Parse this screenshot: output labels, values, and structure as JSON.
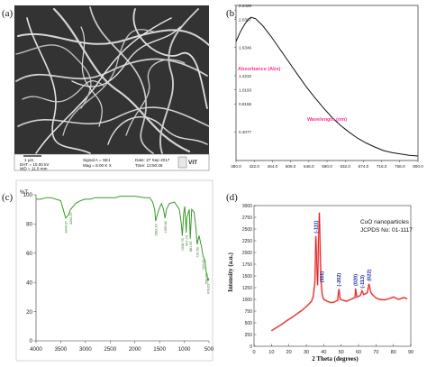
{
  "panels": {
    "a": {
      "label": "(a)"
    },
    "b": {
      "label": "(b)"
    },
    "c": {
      "label": "(c)"
    },
    "d": {
      "label": "(d)"
    }
  },
  "sem_info": {
    "left": [
      "EHT = 10.00 kV",
      "WD = 11.0 mm"
    ],
    "middle": [
      "Signal A = SE1",
      "Mag = 8.00 K X"
    ],
    "right": [
      "Date: 27 Sep 2017",
      "Time: 13:50:28"
    ],
    "scale": "1 µm",
    "logo": "VIT"
  },
  "colors": {
    "ir_line": "#3a9a2a",
    "ir_label": "#2f7a2a",
    "xrd_line": "#e0201c",
    "uv_line": "#111111",
    "uv_axis_label": "#ff3399",
    "xrd_peak_label": "#1a2f9a"
  },
  "chart_data": [
    {
      "panel": "b",
      "type": "line",
      "title": "",
      "xlabel": "Wavelength (nm)",
      "ylabel": "Absorbance (Abs)",
      "xlim": [
        380.0,
        800.0
      ],
      "ylim": [
        -0.0055,
        2.2426
      ],
      "xticks": [
        380.0,
        422.0,
        464.0,
        506.0,
        548.0,
        590.0,
        632.0,
        674.0,
        716.0,
        758.0,
        800.0
      ],
      "xtick_labels": [
        "380.0",
        "422.0",
        "464.0",
        "506.0",
        "548.0",
        "590.0",
        "632.0",
        "674.0",
        "716.0",
        "758.0",
        "800.0"
      ],
      "yticks": [
        0.4077,
        0.8155,
        1.0193,
        1.2232,
        1.6346,
        2.0387,
        2.2426
      ],
      "ytick_labels": [
        "0.4077",
        "0.8155",
        "1.0193",
        "1.2232",
        "1.6346",
        "2.0387",
        "2.2426"
      ],
      "x": [
        380,
        390,
        400,
        410,
        415,
        420,
        425,
        430,
        440,
        450,
        460,
        480,
        500,
        520,
        540,
        560,
        580,
        600,
        620,
        640,
        660,
        680,
        700,
        720,
        740,
        760,
        780,
        800
      ],
      "y": [
        1.72,
        1.86,
        1.97,
        2.05,
        2.07,
        2.06,
        2.05,
        2.02,
        1.96,
        1.88,
        1.8,
        1.62,
        1.44,
        1.26,
        1.08,
        0.92,
        0.77,
        0.63,
        0.51,
        0.41,
        0.32,
        0.25,
        0.19,
        0.14,
        0.11,
        0.09,
        0.07,
        0.06
      ]
    },
    {
      "panel": "c",
      "type": "line",
      "title": "",
      "ylabel": "%T",
      "xlim": [
        4000,
        500
      ],
      "ylim": [
        0,
        100
      ],
      "xticks": [
        4000,
        3500,
        3000,
        2500,
        2000,
        1500,
        1000,
        500
      ],
      "xtick_labels": [
        "4000",
        "3500",
        "3000",
        "2500",
        "2000",
        "1500",
        "1000",
        "500"
      ],
      "yticks": [
        0,
        20,
        40,
        60,
        80,
        100
      ],
      "ytick_labels": [
        "0",
        "20",
        "40",
        "60",
        "80",
        "100"
      ],
      "x": [
        4000,
        3900,
        3800,
        3700,
        3600,
        3500,
        3450,
        3400,
        3350,
        3300,
        3200,
        3100,
        3000,
        2900,
        2800,
        2600,
        2400,
        2300,
        2200,
        2000,
        1800,
        1700,
        1640,
        1600,
        1580,
        1540,
        1500,
        1460,
        1420,
        1390,
        1360,
        1300,
        1200,
        1100,
        1060,
        1040,
        1010,
        990,
        960,
        950,
        900,
        880,
        860,
        850,
        800,
        760,
        740,
        700,
        650,
        620,
        580,
        560,
        540,
        520,
        500
      ],
      "y": [
        97,
        97,
        98,
        98,
        97,
        96,
        90,
        84,
        86,
        90,
        94,
        96,
        97,
        97,
        98,
        98,
        98,
        99,
        99,
        99,
        98,
        98,
        95,
        90,
        82,
        87,
        91,
        94,
        90,
        84,
        90,
        94,
        95,
        90,
        80,
        72,
        88,
        92,
        74,
        84,
        90,
        70,
        84,
        90,
        88,
        76,
        66,
        72,
        64,
        58,
        55,
        48,
        45,
        41,
        43
      ],
      "peak_labels": [
        {
          "x": 3400,
          "text": "3340.97"
        },
        {
          "x": 3300,
          "text": "3262.57"
        },
        {
          "x": 1580,
          "text": "1582.40"
        },
        {
          "x": 1390,
          "text": "1390.82"
        },
        {
          "x": 1040,
          "text": "1038.76"
        },
        {
          "x": 960,
          "text": "957.70"
        },
        {
          "x": 880,
          "text": "881.93"
        },
        {
          "x": 740,
          "text": "734.59"
        },
        {
          "x": 620,
          "text": "624.81"
        },
        {
          "x": 560,
          "text": "559.60"
        },
        {
          "x": 520,
          "text": "478.63"
        }
      ]
    },
    {
      "panel": "d",
      "type": "line",
      "title": "",
      "xlabel": "2 Theta (degrees)",
      "ylabel": "Intensity (a.u.)",
      "xlim": [
        0,
        90
      ],
      "ylim": [
        0,
        3000
      ],
      "xticks": [
        0,
        10,
        20,
        30,
        40,
        50,
        60,
        70,
        80,
        90
      ],
      "xtick_labels": [
        "0",
        "10",
        "20",
        "30",
        "40",
        "50",
        "60",
        "70",
        "80",
        "90"
      ],
      "yticks": [
        0,
        250,
        500,
        750,
        1000,
        1250,
        1500,
        1750,
        2000,
        2250,
        2500,
        2750,
        3000
      ],
      "ytick_labels": [
        "0",
        "250",
        "500",
        "750",
        "1000",
        "1250",
        "1500",
        "1750",
        "2000",
        "2250",
        "2500",
        "2750",
        "3000"
      ],
      "x": [
        10,
        13,
        16,
        19,
        22,
        25,
        28,
        31,
        33,
        34,
        35,
        35.5,
        36,
        36.5,
        37,
        37.5,
        38,
        38.5,
        39,
        39.5,
        40,
        42,
        44,
        46,
        48,
        48.7,
        49.5,
        51,
        53,
        55,
        58,
        58.3,
        59,
        61,
        62,
        63,
        65,
        66,
        67,
        68,
        70,
        72,
        75,
        78,
        80,
        83,
        86,
        88
      ],
      "y": [
        330,
        400,
        470,
        550,
        620,
        700,
        780,
        880,
        960,
        1060,
        1400,
        2350,
        1800,
        1300,
        2200,
        2850,
        2000,
        1400,
        1150,
        1050,
        1000,
        960,
        930,
        940,
        980,
        1220,
        1000,
        980,
        960,
        990,
        1040,
        1230,
        1050,
        1080,
        1180,
        1100,
        1140,
        1330,
        1150,
        1100,
        1030,
        1000,
        990,
        1020,
        1050,
        1000,
        1040,
        1010
      ],
      "peak_labels": [
        {
          "x": 35.5,
          "text": "(-111)"
        },
        {
          "x": 38.7,
          "text": "(111)"
        },
        {
          "x": 48.7,
          "text": "(-202)"
        },
        {
          "x": 58.3,
          "text": "(020)"
        },
        {
          "x": 62.0,
          "text": "(-113)"
        },
        {
          "x": 66.0,
          "text": "(022)"
        }
      ],
      "legend": {
        "line1": "CuO nanoparticles",
        "line2": "JCPDS No: 01-1117"
      }
    }
  ]
}
